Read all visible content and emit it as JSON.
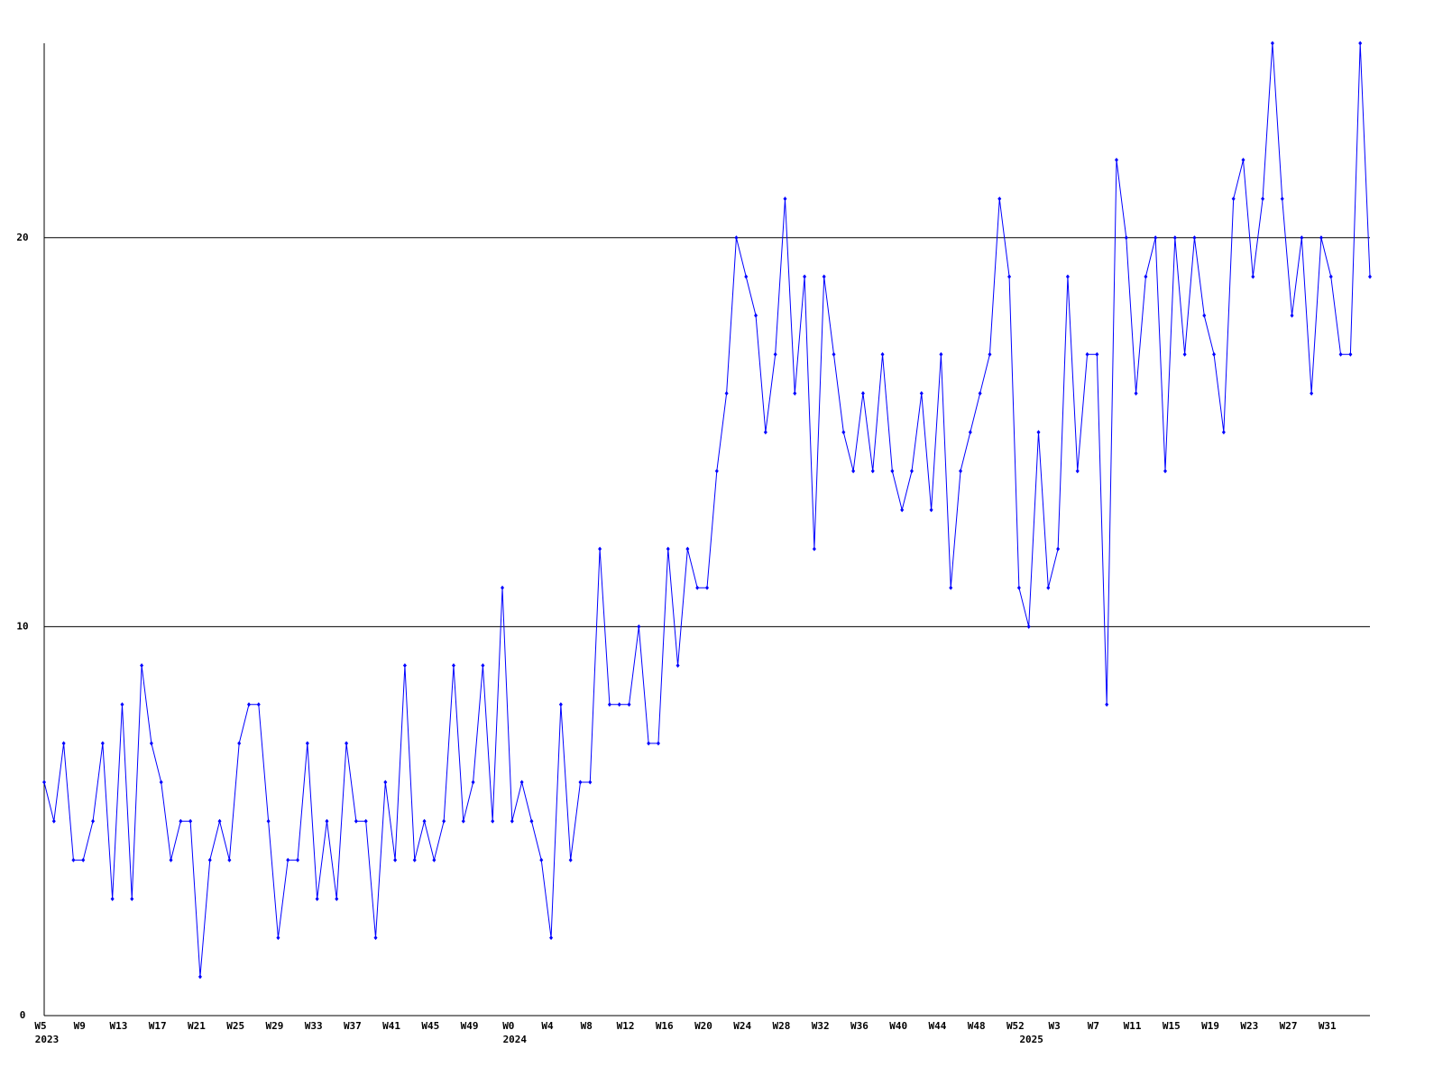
{
  "chart_data": {
    "type": "line",
    "categories": [
      "W5",
      null,
      null,
      null,
      "W9",
      null,
      null,
      null,
      "W13",
      null,
      null,
      null,
      "W17",
      null,
      null,
      null,
      "W21",
      null,
      null,
      null,
      "W25",
      null,
      null,
      null,
      "W29",
      null,
      null,
      null,
      "W33",
      null,
      null,
      null,
      "W37",
      null,
      null,
      null,
      "W41",
      null,
      null,
      null,
      "W45",
      null,
      null,
      null,
      "W49",
      null,
      null,
      null,
      "W0",
      null,
      null,
      null,
      "W4",
      null,
      null,
      null,
      "W8",
      null,
      null,
      null,
      "W12",
      null,
      null,
      null,
      "W16",
      null,
      null,
      null,
      "W20",
      null,
      null,
      null,
      "W24",
      null,
      null,
      null,
      "W28",
      null,
      null,
      null,
      "W32",
      null,
      null,
      null,
      "W36",
      null,
      null,
      null,
      "W40",
      null,
      null,
      null,
      "W44",
      null,
      null,
      null,
      "W48",
      null,
      null,
      null,
      "W52",
      null,
      null,
      null,
      "W3",
      null,
      null,
      null,
      "W7",
      null,
      null,
      null,
      "W11",
      null,
      null,
      null,
      "W15",
      null,
      null,
      null,
      "W19",
      null,
      null,
      null,
      "W23",
      null,
      null,
      null,
      "W27",
      null,
      null,
      null,
      "W31",
      null,
      null,
      null,
      null
    ],
    "category_years": [
      "2023",
      null,
      null,
      null,
      null,
      null,
      null,
      null,
      null,
      null,
      null,
      null,
      null,
      null,
      null,
      null,
      null,
      null,
      null,
      null,
      null,
      null,
      null,
      null,
      null,
      null,
      null,
      null,
      null,
      null,
      null,
      null,
      null,
      null,
      null,
      null,
      null,
      null,
      null,
      null,
      null,
      null,
      null,
      null,
      null,
      null,
      null,
      null,
      "2024",
      null,
      null,
      null,
      null,
      null,
      null,
      null,
      null,
      null,
      null,
      null,
      null,
      null,
      null,
      null,
      null,
      null,
      null,
      null,
      null,
      null,
      null,
      null,
      null,
      null,
      null,
      null,
      null,
      null,
      null,
      null,
      null,
      null,
      null,
      null,
      null,
      null,
      null,
      null,
      null,
      null,
      null,
      null,
      null,
      null,
      null,
      null,
      null,
      null,
      null,
      null,
      null,
      "2025",
      null,
      null,
      null,
      null,
      null,
      null,
      null,
      null,
      null,
      null,
      null,
      null,
      null,
      null,
      null,
      null,
      null,
      null,
      null,
      null,
      null,
      null,
      null,
      null,
      null,
      null,
      null,
      null,
      null,
      null,
      null,
      null,
      null,
      null,
      null
    ],
    "series": [
      {
        "color": "#0000ff",
        "values": [
          6,
          5,
          7,
          4,
          4,
          5,
          7,
          3,
          8,
          3,
          9,
          7,
          6,
          4,
          5,
          5,
          1,
          4,
          5,
          4,
          7,
          8,
          8,
          5,
          2,
          4,
          4,
          7,
          3,
          5,
          3,
          7,
          5,
          5,
          2,
          6,
          4,
          9,
          4,
          5,
          4,
          5,
          9,
          5,
          6,
          9,
          5,
          11,
          5,
          6,
          5,
          4,
          2,
          8,
          4,
          6,
          6,
          12,
          8,
          8,
          8,
          10,
          7,
          7,
          12,
          9,
          12,
          11,
          11,
          14,
          16,
          20,
          19,
          18,
          15,
          17,
          21,
          16,
          19,
          12,
          19,
          17,
          15,
          14,
          16,
          14,
          17,
          14,
          13,
          14,
          16,
          13,
          17,
          11,
          14,
          15,
          16,
          17,
          21,
          19,
          11,
          10,
          15,
          11,
          12,
          19,
          14,
          17,
          17,
          8,
          22,
          20,
          16,
          19,
          20,
          14,
          20,
          17,
          20,
          18,
          17,
          15,
          21,
          22,
          19,
          21,
          25,
          21,
          18,
          20,
          16,
          20,
          19,
          17,
          17,
          25,
          19
        ]
      }
    ],
    "ylim": [
      0,
      25
    ],
    "yticks": [
      0,
      10,
      20
    ],
    "grid": true
  }
}
